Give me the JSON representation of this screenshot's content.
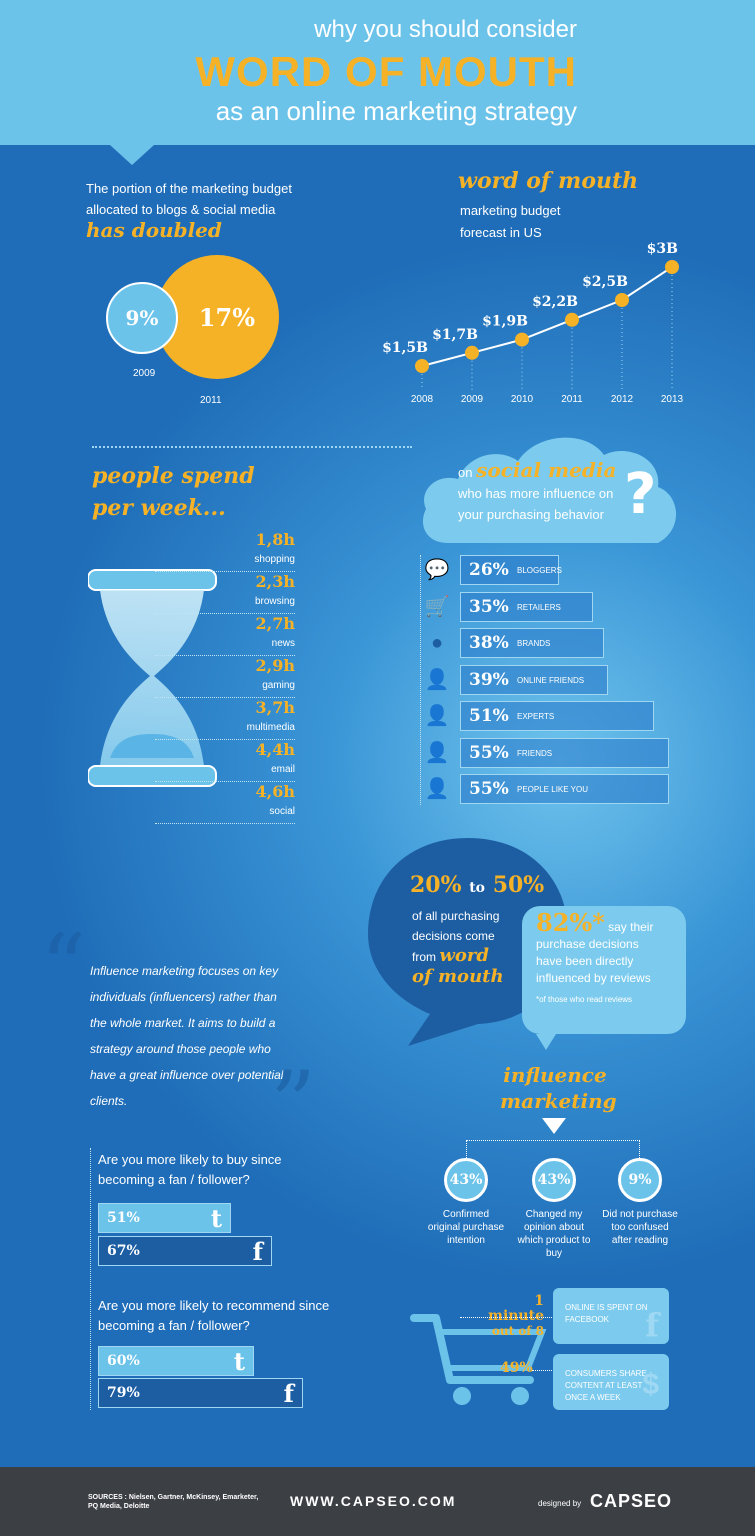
{
  "header": {
    "line1": "why you should consider",
    "line2": "WORD OF MOUTH",
    "line3": "as an online marketing strategy"
  },
  "budget": {
    "line1": "The portion of the marketing budget",
    "line2": "allocated to blogs & social media",
    "emph": "has doubled",
    "v2009": "9%",
    "v2011": "17%",
    "y2009": "2009",
    "y2011": "2011"
  },
  "forecast": {
    "title": "word of mouth",
    "sub1": "marketing budget",
    "sub2": "forecast in US",
    "points": [
      {
        "year": "2008",
        "label": "$1,5B",
        "value": 1.5
      },
      {
        "year": "2009",
        "label": "$1,7B",
        "value": 1.7
      },
      {
        "year": "2010",
        "label": "$1,9B",
        "value": 1.9
      },
      {
        "year": "2011",
        "label": "$2,2B",
        "value": 2.2
      },
      {
        "year": "2012",
        "label": "$2,5B",
        "value": 2.5
      },
      {
        "year": "2013",
        "label": "$3B",
        "value": 3
      }
    ]
  },
  "week": {
    "title1": "people spend",
    "title2": "per week...",
    "items": [
      {
        "v": "1,8h",
        "l": "shopping"
      },
      {
        "v": "2,3h",
        "l": "browsing"
      },
      {
        "v": "2,7h",
        "l": "news"
      },
      {
        "v": "2,9h",
        "l": "gaming"
      },
      {
        "v": "3,7h",
        "l": "multimedia"
      },
      {
        "v": "4,4h",
        "l": "email"
      },
      {
        "v": "4,6h",
        "l": "social"
      }
    ]
  },
  "social": {
    "pre": "on",
    "emph": "social media",
    "q1": "who has more influence on",
    "q2": "your purchasing behavior",
    "qmark": "?",
    "bars": [
      {
        "v": "26%",
        "l": "BLOGGERS",
        "pct": 26,
        "icon": "speech-bubble-icon",
        "glyph": "💬"
      },
      {
        "v": "35%",
        "l": "RETAILERS",
        "pct": 35,
        "icon": "cart-icon",
        "glyph": "🛒"
      },
      {
        "v": "38%",
        "l": "BRANDS",
        "pct": 38,
        "icon": "tag-icon",
        "glyph": "●"
      },
      {
        "v": "39%",
        "l": "ONLINE FRIENDS",
        "pct": 39,
        "icon": "person-chat-icon",
        "glyph": "👤"
      },
      {
        "v": "51%",
        "l": "EXPERTS",
        "pct": 51,
        "icon": "person-tie-icon",
        "glyph": "👤"
      },
      {
        "v": "55%",
        "l": "FRIENDS",
        "pct": 55,
        "icon": "person-add-icon",
        "glyph": "👤"
      },
      {
        "v": "55%",
        "l": "PEOPLE LIKE YOU",
        "pct": 55,
        "icon": "person-heart-icon",
        "glyph": "👤"
      }
    ]
  },
  "wom": {
    "range_a": "20%",
    "to": "to",
    "range_b": "50%",
    "l1": "of all purchasing",
    "l2": "decisions come",
    "from": "from",
    "emph1": "word",
    "emph2": "of mouth"
  },
  "reviews": {
    "pct": "82%*",
    "l1": "say their",
    "l2": "purchase decisions",
    "l3": "have been directly",
    "l4": "influenced by reviews",
    "note": "*of those who read reviews"
  },
  "quote": {
    "text": "Influence marketing focuses on key individuals (influencers) rather than the whole market. It aims to build a strategy around those people who have a great influence over potential clients."
  },
  "fans": {
    "q1": "Are you more likely to buy since becoming a fan / follower?",
    "q1_tw": "51%",
    "q1_fb": "67%",
    "q1_tw_pct": 51,
    "q1_fb_pct": 67,
    "q2": "Are you more likely to recommend since becoming a fan / follower?",
    "q2_tw": "60%",
    "q2_fb": "79%",
    "q2_tw_pct": 60,
    "q2_fb_pct": 79,
    "tw_icon": "t",
    "fb_icon": "f"
  },
  "influence": {
    "t1": "influence",
    "t2": "marketing",
    "items": [
      {
        "v": "43%",
        "l": "Confirmed original purchase intention"
      },
      {
        "v": "43%",
        "l": "Changed my opinion about which product to buy"
      },
      {
        "v": "9%",
        "l": "Did not purchase too confused after reading"
      }
    ]
  },
  "stats": {
    "a_big": "1 minute",
    "a_small": "out of 8",
    "a_text": "ONLINE IS SPENT ON FACEBOOK",
    "b_big": "49%",
    "b_text": "CONSUMERS SHARE CONTENT AT LEAST ONCE A WEEK"
  },
  "footer": {
    "sources": "SOURCES : Nielsen, Gartner, McKinsey, Emarketer, PQ Media, Deloitte",
    "site": "WWW.CAPSEO.COM",
    "designed": "designed by",
    "brand": "CAPSEO"
  },
  "colors": {
    "accent": "#f6b226",
    "light": "#6cc3ea",
    "dark": "#1f6db8"
  }
}
